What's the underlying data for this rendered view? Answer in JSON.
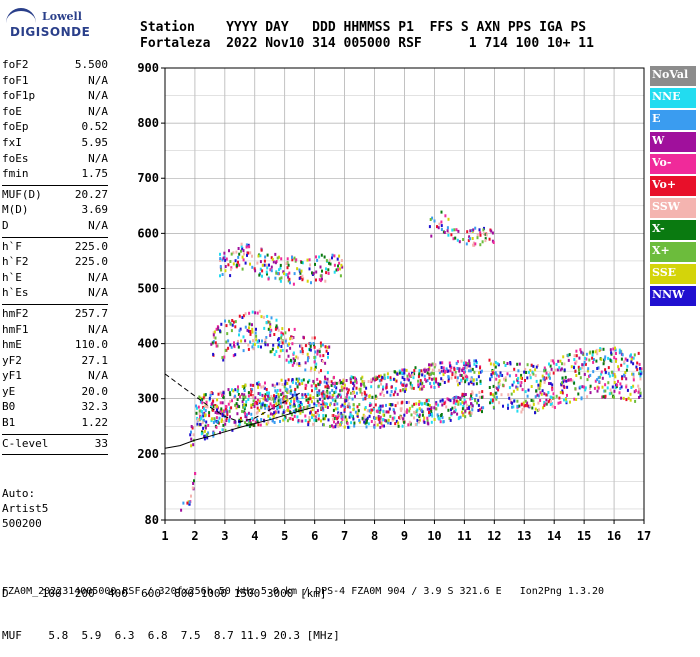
{
  "logo": {
    "line1": "Lowell",
    "line2": "DIGISONDE"
  },
  "header": {
    "line1": "Station    YYYY DAY   DDD HHMMSS P1  FFS S AXN PPS IGA PS",
    "line2": "Fortaleza  2022 Nov10 314 005000 RSF      1 714 100 10+ 11"
  },
  "params": [
    {
      "k": "foF2",
      "v": "5.500"
    },
    {
      "k": "foF1",
      "v": "N/A"
    },
    {
      "k": "foF1p",
      "v": "N/A"
    },
    {
      "k": "foE",
      "v": "N/A"
    },
    {
      "k": "foEp",
      "v": "0.52"
    },
    {
      "k": "fxI",
      "v": "5.95"
    },
    {
      "k": "foEs",
      "v": "N/A"
    },
    {
      "k": "fmin",
      "v": "1.75"
    },
    {
      "sep": true
    },
    {
      "k": "MUF(D)",
      "v": "20.27"
    },
    {
      "k": "M(D)",
      "v": "3.69"
    },
    {
      "k": "D",
      "v": "N/A"
    },
    {
      "sep": true
    },
    {
      "k": "h`F",
      "v": "225.0"
    },
    {
      "k": "h`F2",
      "v": "225.0"
    },
    {
      "k": "h`E",
      "v": "N/A"
    },
    {
      "k": "h`Es",
      "v": "N/A"
    },
    {
      "sep": true
    },
    {
      "k": "hmF2",
      "v": "257.7"
    },
    {
      "k": "hmF1",
      "v": "N/A"
    },
    {
      "k": "hmE",
      "v": "110.0"
    },
    {
      "k": "yF2",
      "v": "27.1"
    },
    {
      "k": "yF1",
      "v": "N/A"
    },
    {
      "k": "yE",
      "v": "20.0"
    },
    {
      "k": "B0",
      "v": "32.3"
    },
    {
      "k": "B1",
      "v": "1.22"
    },
    {
      "sep": true
    },
    {
      "k": "C-level",
      "v": "33"
    },
    {
      "sep": true
    }
  ],
  "auto": [
    "Auto:",
    "Artist5",
    "500200"
  ],
  "legend": [
    {
      "label": "NoVal",
      "color": "#8c8c8c"
    },
    {
      "label": "NNE",
      "color": "#22dcf0"
    },
    {
      "label": "E",
      "color": "#3a9cf0"
    },
    {
      "label": "W",
      "color": "#a0109c"
    },
    {
      "label": "Vo-",
      "color": "#f02a9a"
    },
    {
      "label": "Vo+",
      "color": "#e8102a"
    },
    {
      "label": "SSW",
      "color": "#f4b4b0"
    },
    {
      "label": "X-",
      "color": "#0a7a10"
    },
    {
      "label": "X+",
      "color": "#6cbc3c"
    },
    {
      "label": "SSE",
      "color": "#d4d40a"
    },
    {
      "label": "NNW",
      "color": "#2010d0"
    }
  ],
  "chart_data": {
    "type": "scatter",
    "xlim": [
      1,
      17
    ],
    "ylim": [
      80,
      900
    ],
    "x_ticks": [
      1,
      2,
      3,
      4,
      5,
      6,
      7,
      8,
      9,
      10,
      11,
      12,
      13,
      14,
      15,
      16,
      17
    ],
    "y_ticks": [
      80,
      200,
      300,
      400,
      500,
      600,
      700,
      800,
      900
    ],
    "grid": true,
    "traces": [
      {
        "name": "O-trace F2",
        "x": [
          1.8,
          2.0,
          2.5,
          3.0,
          3.5,
          4.0,
          4.5,
          5.0,
          5.5,
          6.0,
          7.0,
          8.0,
          9.0,
          10.0,
          11.0,
          11.6
        ],
        "y": [
          235,
          245,
          255,
          262,
          268,
          275,
          280,
          285,
          280,
          275,
          272,
          272,
          275,
          280,
          290,
          300
        ]
      },
      {
        "name": "X-trace F2",
        "x": [
          2.0,
          3.0,
          4.0,
          5.0,
          6.0,
          7.0,
          8.0,
          9.0,
          10.0,
          11.0,
          11.6
        ],
        "y": [
          285,
          300,
          310,
          315,
          320,
          320,
          325,
          335,
          345,
          350,
          350
        ]
      },
      {
        "name": "high F2 band",
        "x": [
          11.8,
          12.5,
          13.0,
          13.5,
          14.0,
          14.5,
          15.0,
          15.5,
          16.0,
          16.5,
          16.9
        ],
        "y": [
          330,
          330,
          320,
          320,
          330,
          340,
          350,
          350,
          350,
          340,
          340
        ]
      },
      {
        "name": "spread F",
        "x": [
          2.5,
          3.0,
          3.5,
          4.0,
          4.5,
          5.0,
          5.5,
          6.0,
          6.5
        ],
        "y": [
          390,
          410,
          420,
          430,
          420,
          400,
          390,
          380,
          370
        ]
      },
      {
        "name": "second hop",
        "x": [
          2.8,
          3.2,
          3.6,
          4.0,
          4.4,
          4.8,
          5.2,
          6.6,
          6.9
        ],
        "y": [
          540,
          550,
          560,
          555,
          545,
          540,
          535,
          540,
          545
        ]
      },
      {
        "name": "upper echoes",
        "x": [
          9.8,
          10.0,
          10.2,
          10.4,
          10.6,
          11.0,
          11.5,
          12.0
        ],
        "y": [
          610,
          620,
          625,
          615,
          605,
          600,
          595,
          605
        ]
      },
      {
        "name": "low echoes",
        "x": [
          1.5,
          1.6,
          1.7,
          1.8,
          2.0
        ],
        "y": [
          100,
          110,
          105,
          115,
          170
        ]
      }
    ],
    "profile": {
      "x": [
        1.0,
        1.5,
        2.0,
        2.5,
        3.0,
        3.5,
        4.0,
        4.5,
        5.0,
        5.5,
        6.0
      ],
      "y": [
        210,
        215,
        225,
        232,
        240,
        248,
        255,
        262,
        270,
        278,
        285
      ]
    },
    "profile2": {
      "x": [
        1.0,
        1.5,
        2.0,
        2.5,
        3.0,
        3.5,
        4.0,
        4.5,
        5.0,
        5.5
      ],
      "y": [
        345,
        325,
        305,
        285,
        268,
        258,
        265,
        280,
        295,
        310
      ]
    }
  },
  "footer": {
    "line1": "D     100  200  400  600  800 1000 1500 3000 [km]",
    "line2": "MUF    5.8  5.9  6.3  6.8  7.5  8.7 11.9 20.3 [MHz]",
    "line3": "FZA0M_2022314005000.RSF / 320fx256h 50 kHz 5.0 km / DPS-4 FZA0M 904 / 3.9 S 321.6 E   Ion2Png 1.3.20"
  }
}
